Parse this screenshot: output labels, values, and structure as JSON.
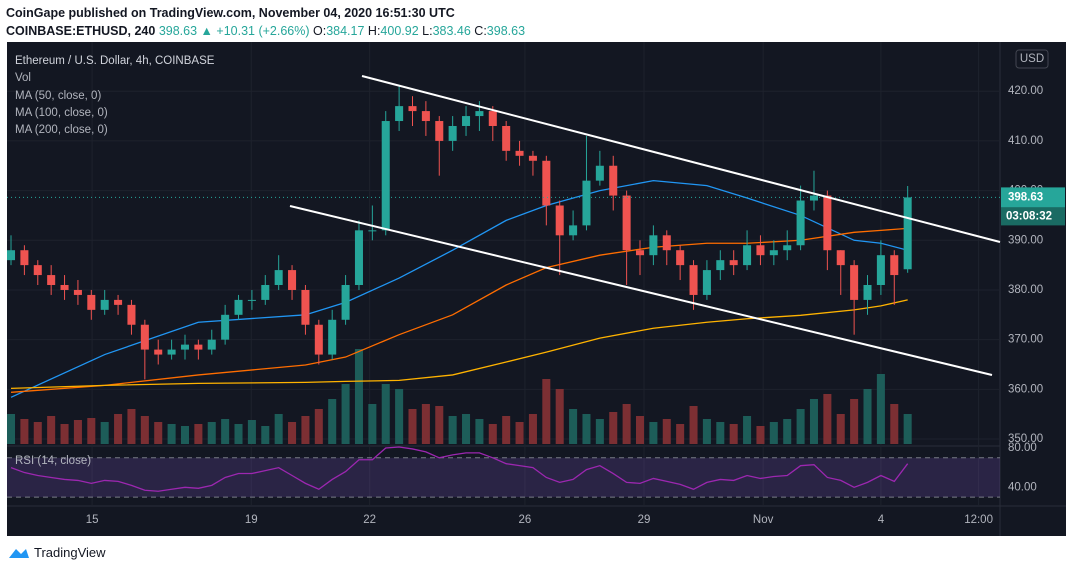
{
  "header": {
    "published": "CoinGape published on TradingView.com, November 04, 2020 16:51:30 UTC",
    "symbol": "COINBASE:ETHUSD, 240",
    "change": "▲ +10.31 (+2.66%)",
    "ohlc_labels": [
      "O:",
      "H:",
      "L:",
      "C:"
    ]
  },
  "chart_data": {
    "type": "candlestick",
    "title": "Ethereum / U.S. Dollar, 4h, COINBASE",
    "currency": "USD",
    "countdown": "03:08:32",
    "up_color": "#26a69a",
    "down_color": "#ef5350",
    "xlim": [
      -0.3,
      73.9
    ],
    "xticks": [
      {
        "value": 6.06,
        "label": "15"
      },
      {
        "value": 17.95,
        "label": "19"
      },
      {
        "value": 26.8,
        "label": "22"
      },
      {
        "value": 38.4,
        "label": "26"
      },
      {
        "value": 47.3,
        "label": "29"
      },
      {
        "value": 56.2,
        "label": "Nov"
      },
      {
        "value": 65.0,
        "label": "4"
      },
      {
        "value": 72.3,
        "label": "12:00"
      }
    ],
    "ylim": [
      348.8,
      429.3
    ],
    "yticks": [
      {
        "value": 350,
        "label": "350.00"
      },
      {
        "value": 360,
        "label": "360.00"
      },
      {
        "value": 370,
        "label": "370.00"
      },
      {
        "value": 380,
        "label": "380.00"
      },
      {
        "value": 390,
        "label": "390.00"
      },
      {
        "value": 400,
        "label": "400.00"
      },
      {
        "value": 410,
        "label": "410.00"
      },
      {
        "value": 420,
        "label": "420.00"
      }
    ],
    "open": [
      386,
      388,
      385,
      383,
      381,
      380,
      379,
      376,
      378,
      377,
      373,
      368,
      367,
      368,
      369,
      368,
      370,
      375,
      378,
      378,
      381,
      384,
      380,
      373,
      367,
      374,
      381,
      392,
      392,
      414,
      417,
      416,
      414,
      410,
      413,
      415,
      416,
      413,
      408,
      407,
      406,
      397,
      391,
      393,
      402,
      405,
      399,
      388,
      387,
      391,
      388,
      385,
      379,
      384,
      386,
      385,
      389,
      387,
      388,
      389,
      398,
      399,
      388,
      385,
      378,
      381,
      387,
      384.17
    ],
    "high": [
      391,
      389,
      386,
      385,
      383,
      382,
      380,
      380,
      379,
      378,
      374,
      370,
      370,
      371,
      370,
      372,
      377,
      379,
      380,
      383,
      387,
      385,
      381,
      374,
      376,
      383,
      394,
      397,
      416,
      421,
      419,
      418,
      415,
      415,
      417,
      418,
      417,
      414,
      410,
      408,
      407,
      398,
      396,
      411,
      408,
      407,
      400,
      390,
      393,
      392,
      389,
      386,
      386,
      388,
      388,
      392,
      391,
      390,
      392,
      401,
      404,
      400,
      388,
      386,
      383,
      390,
      388,
      400.92
    ],
    "low": [
      385,
      383,
      381,
      379,
      378,
      377,
      374,
      375,
      375,
      371,
      362,
      365,
      366,
      366,
      366,
      367,
      369,
      374,
      376,
      377,
      380,
      378,
      371,
      365,
      366,
      373,
      380,
      390,
      391,
      412,
      413,
      411,
      403,
      408,
      411,
      412,
      410,
      406,
      405,
      403,
      393,
      383,
      390,
      392,
      401,
      396,
      381,
      383,
      385,
      385,
      382,
      376,
      378,
      382,
      383,
      384,
      385,
      385,
      386,
      388,
      396,
      384,
      379,
      371,
      375,
      379,
      377,
      383.46
    ],
    "close": [
      388,
      385,
      383,
      381,
      380,
      379,
      376,
      378,
      377,
      373,
      368,
      367,
      368,
      369,
      368,
      370,
      375,
      378,
      378,
      381,
      384,
      380,
      373,
      367,
      374,
      381,
      392,
      392,
      414,
      417,
      416,
      414,
      410,
      413,
      415,
      416,
      413,
      408,
      407,
      406,
      397,
      391,
      393,
      402,
      405,
      399,
      388,
      387,
      391,
      388,
      385,
      379,
      384,
      386,
      385,
      389,
      387,
      388,
      389,
      398,
      399,
      388,
      385,
      378,
      381,
      387,
      383,
      398.63
    ],
    "volume": {
      "name": "Vol",
      "values": [
        30,
        25,
        22,
        28,
        20,
        24,
        26,
        22,
        30,
        35,
        28,
        22,
        20,
        18,
        20,
        22,
        25,
        20,
        24,
        18,
        30,
        22,
        28,
        35,
        45,
        60,
        95,
        40,
        60,
        55,
        35,
        40,
        38,
        28,
        30,
        25,
        20,
        28,
        22,
        30,
        65,
        55,
        35,
        30,
        25,
        32,
        40,
        28,
        22,
        25,
        20,
        38,
        25,
        22,
        20,
        28,
        18,
        22,
        25,
        35,
        45,
        50,
        30,
        45,
        55,
        70,
        40,
        30
      ]
    },
    "series": [
      {
        "name": "MA (50, close, 0)",
        "color": "#2196f3",
        "x": [
          0,
          7,
          14,
          22,
          25,
          29,
          33,
          37,
          40,
          44,
          48,
          52,
          55,
          59,
          63,
          65,
          67
        ],
        "values": [
          358.4,
          367,
          373.5,
          375,
          377.5,
          382.4,
          388,
          394,
          397,
          400,
          402,
          401,
          398.5,
          395,
          390,
          389.4,
          388
        ]
      },
      {
        "name": "MA (100, close, 0)",
        "color": "#ff6d00",
        "x": [
          0,
          7,
          14,
          22,
          25,
          29,
          33,
          37,
          40,
          44,
          48,
          52,
          55,
          59,
          63,
          65,
          67
        ],
        "values": [
          359.4,
          360.8,
          362.9,
          364.9,
          366.5,
          371,
          375,
          381,
          384.5,
          387,
          388.6,
          389.4,
          389.4,
          390,
          391.6,
          392,
          392.4
        ]
      },
      {
        "name": "MA (200, close, 0)",
        "color": "#ffb300",
        "x": [
          0,
          7,
          14,
          22,
          25,
          29,
          33,
          37,
          40,
          44,
          48,
          52,
          55,
          59,
          63,
          65,
          67
        ],
        "values": [
          360.2,
          360.8,
          361.2,
          361.4,
          361.6,
          361.8,
          362.9,
          365.5,
          367.5,
          370.3,
          372.3,
          373.5,
          374.2,
          374.9,
          376,
          376.8,
          378
        ]
      }
    ],
    "rsi": {
      "name": "RSI (14, close)",
      "color": "#9c27b0",
      "ylim": [
        22,
        82
      ],
      "yticks": [
        {
          "value": 80,
          "label": "80.00"
        },
        {
          "value": 40,
          "label": "40.00"
        }
      ],
      "bands": [
        30,
        70
      ],
      "values": [
        60,
        55,
        52,
        50,
        48,
        47,
        44,
        47,
        46,
        42,
        37,
        36,
        38,
        40,
        39,
        42,
        50,
        54,
        54,
        57,
        60,
        52,
        44,
        38,
        48,
        56,
        68,
        68,
        80,
        81,
        79,
        76,
        70,
        73,
        75,
        75,
        70,
        64,
        62,
        60,
        50,
        45,
        48,
        58,
        62,
        54,
        45,
        44,
        49,
        46,
        43,
        38,
        45,
        48,
        47,
        52,
        49,
        51,
        52,
        62,
        63,
        50,
        47,
        40,
        45,
        52,
        46,
        64
      ]
    }
  },
  "footer": {
    "brand": "TradingView"
  }
}
